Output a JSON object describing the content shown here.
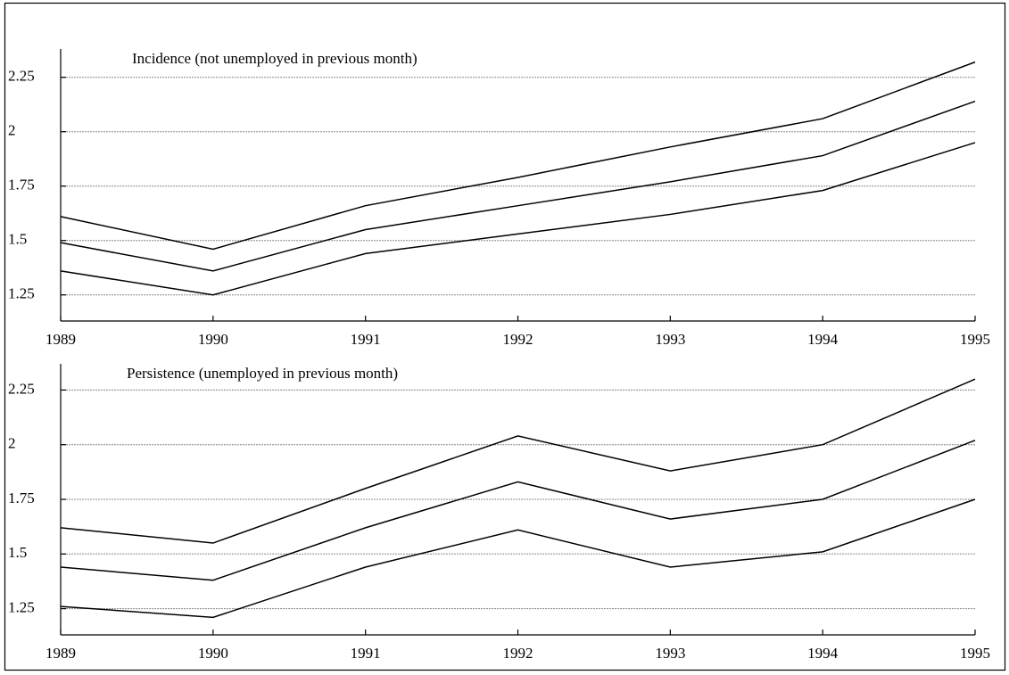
{
  "chart_data": [
    {
      "type": "line",
      "title": "Incidence (not unemployed in previous month)",
      "x": [
        1989,
        1990,
        1991,
        1992,
        1993,
        1994,
        1995
      ],
      "series": [
        {
          "color": "#000000",
          "values": [
            1.61,
            1.46,
            1.66,
            1.79,
            1.93,
            2.06,
            2.32
          ]
        },
        {
          "color": "#000000",
          "values": [
            1.49,
            1.36,
            1.55,
            1.66,
            1.77,
            1.89,
            2.14
          ]
        },
        {
          "color": "#000000",
          "values": [
            1.36,
            1.25,
            1.44,
            1.53,
            1.62,
            1.73,
            1.95
          ]
        }
      ],
      "xlim": [
        1989,
        1995
      ],
      "xticks": [
        1989,
        1990,
        1991,
        1992,
        1993,
        1994,
        1995
      ],
      "ylim": [
        1.13,
        2.38
      ],
      "yticks": [
        1.25,
        1.5,
        1.75,
        2,
        2.25
      ],
      "grid": true
    },
    {
      "type": "line",
      "title": "Persistence (unemployed in previous month)",
      "x": [
        1989,
        1990,
        1991,
        1992,
        1993,
        1994,
        1995
      ],
      "series": [
        {
          "color": "#000000",
          "values": [
            1.62,
            1.55,
            1.8,
            2.04,
            1.88,
            2.0,
            2.3
          ]
        },
        {
          "color": "#000000",
          "values": [
            1.44,
            1.38,
            1.62,
            1.83,
            1.66,
            1.75,
            2.02
          ]
        },
        {
          "color": "#000000",
          "values": [
            1.26,
            1.21,
            1.44,
            1.61,
            1.44,
            1.51,
            1.75
          ]
        }
      ],
      "xlim": [
        1989,
        1995
      ],
      "xticks": [
        1989,
        1990,
        1991,
        1992,
        1993,
        1994,
        1995
      ],
      "ylim": [
        1.13,
        2.37
      ],
      "yticks": [
        1.25,
        1.5,
        1.75,
        2,
        2.25
      ],
      "grid": true
    }
  ]
}
